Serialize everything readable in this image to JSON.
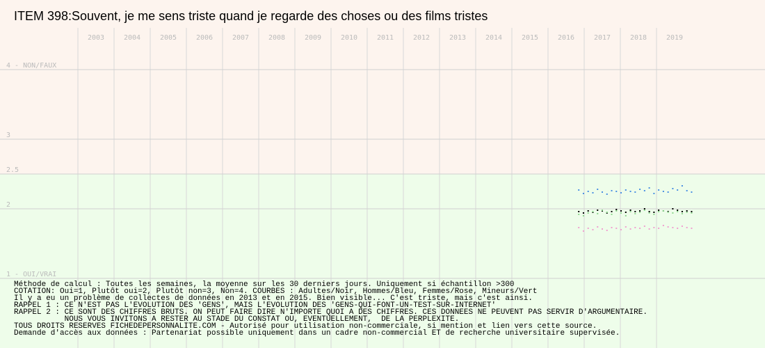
{
  "chart_data": {
    "type": "scatter",
    "title": "ITEM 398:Souvent, je me sens triste quand je regarde des choses ou des films tristes",
    "xlim": [
      2003,
      2022
    ],
    "xticks": [
      2003,
      2004,
      2005,
      2006,
      2007,
      2008,
      2009,
      2010,
      2011,
      2012,
      2013,
      2014,
      2015,
      2016,
      2017,
      2018,
      2019
    ],
    "ylim": [
      0.5,
      4.5
    ],
    "yticks": [
      {
        "value": 1,
        "label": "1 - OUI/VRAI"
      },
      2,
      2.5,
      3,
      {
        "value": 4,
        "label": "4 - NON/FAUX"
      }
    ],
    "grid": true,
    "x": [
      2016.85,
      2016.98,
      2017.11,
      2017.24,
      2017.37,
      2017.5,
      2017.63,
      2017.76,
      2017.89,
      2018.02,
      2018.15,
      2018.28,
      2018.41,
      2018.54,
      2018.67,
      2018.8,
      2018.93,
      2019.06,
      2019.19,
      2019.32,
      2019.45,
      2019.58,
      2019.71,
      2019.84,
      2019.97
    ],
    "series": [
      {
        "name": "Adultes",
        "color": "#000000",
        "values": [
          1.96,
          1.94,
          1.97,
          1.95,
          1.98,
          1.97,
          1.94,
          1.96,
          1.99,
          1.97,
          1.95,
          1.98,
          1.96,
          1.97,
          2.0,
          1.96,
          1.95,
          1.98,
          1.97,
          1.96,
          2.0,
          1.98,
          1.96,
          1.97,
          1.96
        ]
      },
      {
        "name": "Hommes",
        "color": "#4a90e2",
        "values": [
          2.27,
          2.22,
          2.25,
          2.23,
          2.28,
          2.24,
          2.21,
          2.26,
          2.25,
          2.23,
          2.27,
          2.25,
          2.24,
          2.28,
          2.26,
          2.3,
          2.22,
          2.27,
          2.25,
          2.24,
          2.29,
          2.27,
          2.33,
          2.26,
          2.24
        ]
      },
      {
        "name": "Mineurs",
        "color": "#90d890",
        "values": [
          1.92,
          1.9,
          1.94,
          1.96,
          1.93,
          1.98,
          1.95,
          1.92,
          1.97,
          1.94,
          1.9,
          1.96,
          1.93,
          1.95,
          1.98,
          1.94,
          1.92,
          1.96,
          1.97,
          1.95,
          1.94,
          1.96,
          1.93,
          1.95,
          1.94
        ]
      },
      {
        "name": "Femmes",
        "color": "#f0a0d0",
        "values": [
          1.73,
          1.68,
          1.72,
          1.7,
          1.74,
          1.71,
          1.69,
          1.73,
          1.72,
          1.7,
          1.74,
          1.71,
          1.73,
          1.72,
          1.75,
          1.71,
          1.73,
          1.72,
          1.76,
          1.74,
          1.73,
          1.72,
          1.75,
          1.73,
          1.72
        ]
      }
    ],
    "notes": [
      "Méthode de calcul : Toutes les semaines, la moyenne sur les 30 derniers jours. Uniquement si échantillon >300",
      "COTATION: Oui=1, Plutôt oui=2, Plutôt non=3, Non=4. COURBES : Adultes/Noir, Hommes/Bleu, Femmes/Rose, Mineurs/Vert",
      "Il y a eu un problème de collectes de données en 2013 et en 2015. Bien visible... C'est triste, mais c'est ainsi.",
      "RAPPEL 1 : CE N'EST PAS L'EVOLUTION DES 'GENS', MAIS L'EVOLUTION DES 'GENS-QUI-FONT-UN-TEST-SUR-INTERNET'",
      "RAPPEL 2 : CE SONT DES CHIFFRES BRUTS. ON PEUT FAIRE DIRE N'IMPORTE QUOI A DES CHIFFRES. CES DONNEES NE PEUVENT PAS SERVIR D'ARGUMENTAIRE.",
      "           NOUS VOUS INVITONS A RESTER AU STADE DU CONSTAT OU, EVENTUELLEMENT,  DE LA PERPLEXITE.",
      "TOUS DROITS RESERVES FICHEDEPERSONNALITE.COM - Autorisé pour utilisation non-commerciale, si mention et lien vers cette source.",
      "Demande d'accès aux données : Partenariat possible uniquement dans un cadre non-commercial ET de recherche universitaire supervisée."
    ]
  }
}
